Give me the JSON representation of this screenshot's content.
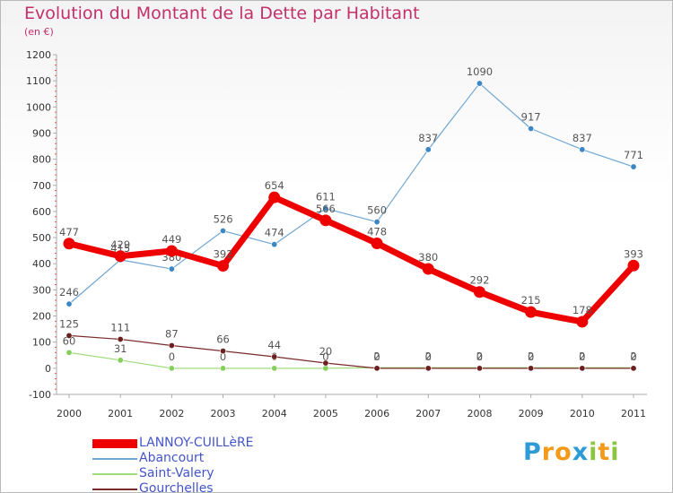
{
  "title": "Evolution du Montant de la Dette par Habitant",
  "unit": "(en €)",
  "logo": {
    "letters": [
      {
        "ch": "P",
        "color": "#2f9bd6"
      },
      {
        "ch": "r",
        "color": "#f39a1a"
      },
      {
        "ch": "o",
        "color": "#f39a1a"
      },
      {
        "ch": "x",
        "color": "#2f9bd6"
      },
      {
        "ch": "i",
        "color": "#8cc63e"
      },
      {
        "ch": "t",
        "color": "#f39a1a"
      },
      {
        "ch": "i",
        "color": "#8cc63e"
      }
    ]
  },
  "chart_data": {
    "type": "line",
    "title": "Evolution du Montant de la Dette par Habitant",
    "x": [
      "2000",
      "2001",
      "2002",
      "2003",
      "2004",
      "2005",
      "2006",
      "2007",
      "2008",
      "2009",
      "2010",
      "2011"
    ],
    "ylim": [
      -100,
      1200
    ],
    "yticks": [
      -100,
      0,
      100,
      200,
      300,
      400,
      500,
      600,
      700,
      800,
      900,
      1000,
      1100,
      1200
    ],
    "grid": false,
    "legend": "bottom-left",
    "series": [
      {
        "name": "Abancourt",
        "color": "#6fa6d2",
        "marker": "#3b86c4",
        "width": 1.2,
        "r": 3.2,
        "values": [
          246,
          415,
          380,
          526,
          474,
          611,
          560,
          837,
          1090,
          917,
          837,
          771
        ],
        "labels": [
          "246",
          "415",
          "380",
          "526",
          "474",
          "611",
          "560",
          "837",
          "1090",
          "917",
          "837",
          "771"
        ]
      },
      {
        "name": "Saint-Valery",
        "color": "#9fdc7e",
        "marker": "#86cf5d",
        "width": 1.2,
        "r": 3.2,
        "values": [
          60,
          31,
          0,
          0,
          0,
          0,
          2,
          2,
          2,
          2,
          2,
          2
        ],
        "labels": [
          "60",
          "31",
          "0",
          "0",
          "0",
          "0",
          "2",
          "2",
          "2",
          "2",
          "2",
          "2"
        ]
      },
      {
        "name": "Gourchelles",
        "color": "#7a2a2a",
        "marker": "#6b1f1f",
        "width": 1.2,
        "r": 3.2,
        "values": [
          125,
          111,
          87,
          66,
          44,
          20,
          0,
          0,
          0,
          0,
          0,
          0
        ],
        "labels": [
          "125",
          "111",
          "87",
          "66",
          "44",
          "20",
          "0",
          "0",
          "0",
          "0",
          "0",
          "0"
        ]
      },
      {
        "name": "LANNOY-CUILLèRE",
        "color": "#ee0000",
        "marker": "#ee0000",
        "width": 7,
        "r": 6.5,
        "values": [
          477,
          429,
          449,
          392,
          654,
          566,
          478,
          380,
          292,
          215,
          178,
          393
        ],
        "labels": [
          "477",
          "429",
          "449",
          "392",
          "654",
          "566",
          "478",
          "380",
          "292",
          "215",
          "178",
          "393"
        ]
      }
    ],
    "legend_order": [
      "LANNOY-CUILLèRE",
      "Abancourt",
      "Saint-Valery",
      "Gourchelles"
    ]
  }
}
